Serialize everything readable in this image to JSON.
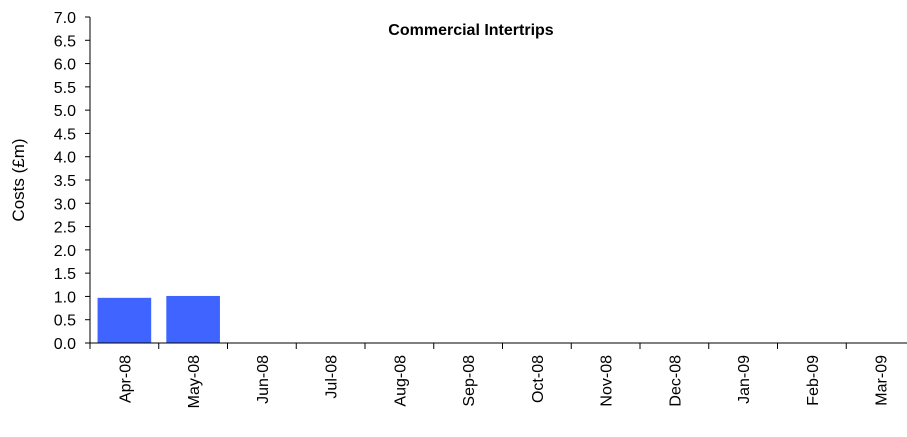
{
  "chart_data": {
    "type": "bar",
    "title": "Commercial Intertrips",
    "xlabel": "",
    "ylabel": "Costs (£m)",
    "ylim": [
      0,
      7
    ],
    "ytick_step": 0.5,
    "ytick_labels": [
      "0.0",
      "0.5",
      "1.0",
      "1.5",
      "2.0",
      "2.5",
      "3.0",
      "3.5",
      "4.0",
      "4.5",
      "5.0",
      "5.5",
      "6.0",
      "6.5",
      "7.0"
    ],
    "categories": [
      "Apr-08",
      "May-08",
      "Jun-08",
      "Jul-08",
      "Aug-08",
      "Sep-08",
      "Oct-08",
      "Nov-08",
      "Dec-08",
      "Jan-09",
      "Feb-09",
      "Mar-09"
    ],
    "values": [
      0.97,
      1.01,
      0,
      0,
      0,
      0,
      0,
      0,
      0,
      0,
      0,
      0
    ],
    "bar_color": "#3f64ff",
    "grid": false,
    "legend": "none"
  }
}
